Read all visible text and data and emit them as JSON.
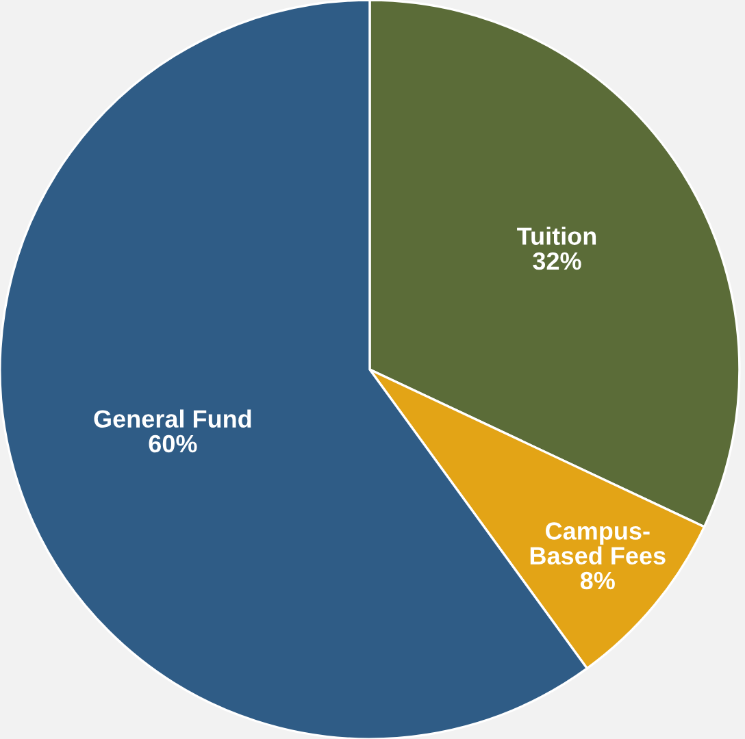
{
  "chart_data": {
    "type": "pie",
    "categories": [
      "Tuition",
      "Campus-\nBased Fees",
      "General Fund"
    ],
    "values": [
      32,
      8,
      60
    ],
    "value_labels": [
      "32%",
      "8%",
      "60%"
    ],
    "colors": [
      "#5b6c38",
      "#e3a416",
      "#2f5c86"
    ]
  }
}
